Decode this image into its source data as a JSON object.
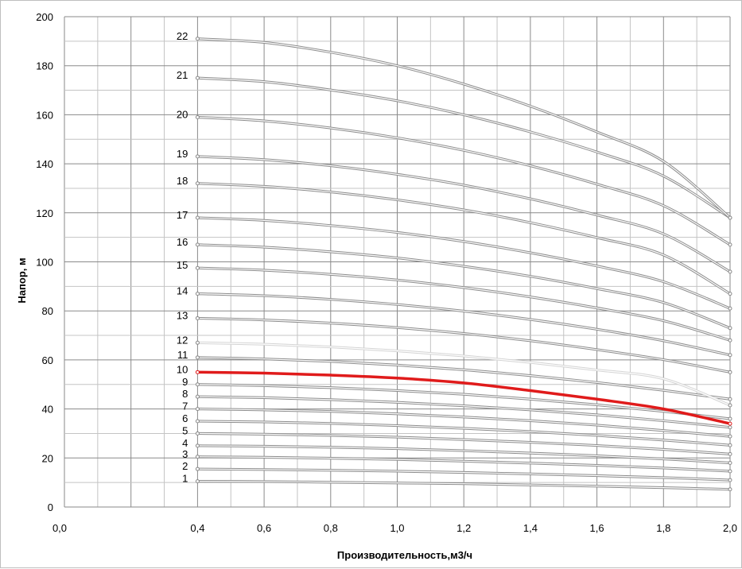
{
  "chart_data": {
    "type": "line",
    "title": "",
    "xlabel": "Производительность,м3/ч",
    "ylabel": "Напор, м",
    "xlim": [
      0.0,
      2.0
    ],
    "ylim": [
      0,
      200
    ],
    "x_ticks": [
      "0,0",
      "0,4",
      "0,6",
      "0,8",
      "1,0",
      "1,2",
      "1,4",
      "1,6",
      "1,8",
      "2,0"
    ],
    "y_ticks": [
      "0",
      "20",
      "40",
      "60",
      "80",
      "100",
      "120",
      "140",
      "160",
      "180",
      "200"
    ],
    "grid": true,
    "legend": "none",
    "highlight_color": "#e01b1b",
    "line_color": "#8c8c8c",
    "light_color": "#d4d4d4",
    "x": [
      0.4,
      0.6,
      0.8,
      1.0,
      1.2,
      1.4,
      1.6,
      1.8,
      2.0
    ],
    "series": [
      {
        "label": "1",
        "values": [
          10.5,
          10.4,
          10.1,
          9.8,
          9.5,
          9.0,
          8.5,
          7.9,
          7.2
        ]
      },
      {
        "label": "2",
        "values": [
          15.5,
          15.3,
          15.0,
          14.6,
          14.1,
          13.5,
          12.8,
          12.0,
          11.0
        ]
      },
      {
        "label": "3",
        "values": [
          20.5,
          20.3,
          19.9,
          19.4,
          18.7,
          17.9,
          17.0,
          15.9,
          14.6
        ]
      },
      {
        "label": "4",
        "values": [
          25.0,
          24.8,
          24.4,
          23.8,
          23.0,
          22.0,
          20.9,
          19.6,
          18.0
        ]
      },
      {
        "label": "5",
        "values": [
          30.0,
          29.7,
          29.2,
          28.5,
          27.5,
          26.4,
          25.1,
          23.5,
          21.6
        ]
      },
      {
        "label": "6",
        "values": [
          35.0,
          34.7,
          34.1,
          33.2,
          32.1,
          30.8,
          29.2,
          27.3,
          25.2
        ]
      },
      {
        "label": "7",
        "values": [
          40.0,
          39.6,
          39.0,
          38.0,
          36.7,
          35.2,
          33.4,
          31.2,
          28.8
        ]
      },
      {
        "label": "8",
        "values": [
          45.0,
          44.6,
          43.8,
          42.7,
          41.3,
          39.6,
          37.6,
          35.2,
          32.5
        ]
      },
      {
        "label": "9",
        "values": [
          50.0,
          49.5,
          48.7,
          47.5,
          46.0,
          44.0,
          41.7,
          39.0,
          36.0
        ]
      },
      {
        "label": "10",
        "values": [
          55.0,
          54.6,
          53.8,
          52.6,
          50.6,
          47.5,
          44.0,
          40.0,
          34.0
        ],
        "highlight": true
      },
      {
        "label": "11",
        "values": [
          61.0,
          60.4,
          59.4,
          57.9,
          56.0,
          53.6,
          50.8,
          47.6,
          44.0
        ]
      },
      {
        "label": "12",
        "values": [
          67.0,
          66.4,
          65.3,
          63.7,
          61.6,
          59.0,
          55.9,
          52.3,
          41.5
        ],
        "light": true
      },
      {
        "label": "13",
        "values": [
          77.0,
          76.3,
          75.0,
          73.2,
          70.8,
          67.8,
          64.2,
          60.1,
          55.0
        ]
      },
      {
        "label": "14",
        "values": [
          87.0,
          86.2,
          84.7,
          82.6,
          79.9,
          76.5,
          72.5,
          67.8,
          62.0
        ]
      },
      {
        "label": "15",
        "values": [
          97.5,
          96.6,
          94.9,
          92.6,
          89.5,
          85.7,
          81.2,
          76.0,
          68.0
        ]
      },
      {
        "label": "16",
        "values": [
          107.0,
          106.0,
          104.1,
          101.6,
          98.2,
          94.1,
          89.1,
          83.4,
          73.0
        ]
      },
      {
        "label": "17",
        "values": [
          118.0,
          116.9,
          114.8,
          112.0,
          108.3,
          103.7,
          98.3,
          91.9,
          81.0
        ]
      },
      {
        "label": "18",
        "values": [
          132.0,
          130.8,
          128.5,
          125.3,
          121.2,
          116.0,
          109.9,
          102.8,
          87.0
        ]
      },
      {
        "label": "19",
        "values": [
          143.0,
          141.7,
          139.2,
          135.7,
          131.3,
          125.7,
          119.1,
          111.4,
          96.0
        ]
      },
      {
        "label": "20",
        "values": [
          159.0,
          157.5,
          154.6,
          150.6,
          145.5,
          139.2,
          131.7,
          122.9,
          107.0
        ]
      },
      {
        "label": "21",
        "values": [
          175.0,
          173.5,
          170.1,
          165.7,
          160.0,
          153.0,
          144.8,
          135.0,
          118.0
        ]
      },
      {
        "label": "22",
        "values": [
          191.0,
          189.5,
          185.5,
          180.0,
          172.5,
          163.5,
          153.0,
          141.0,
          118.0
        ]
      }
    ]
  }
}
